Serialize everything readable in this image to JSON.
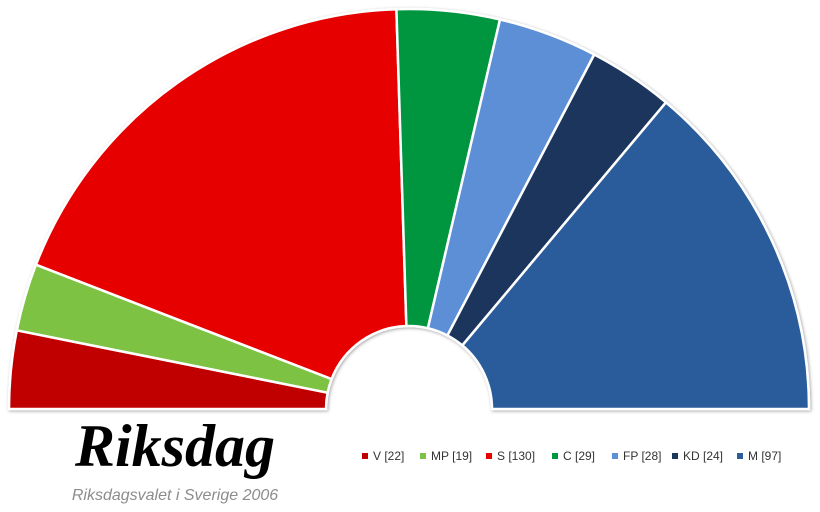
{
  "chart_data": {
    "type": "semicircle-donut",
    "title": "Riksdag",
    "subtitle": "Riksdagsvalet i Sverige 2006",
    "categories": [
      "V [22]",
      "MP [19]",
      "S [130]",
      "C [29]",
      "FP [28]",
      "KD [24]",
      "M [97]"
    ],
    "values": [
      22,
      19,
      130,
      29,
      28,
      24,
      97
    ],
    "colors": [
      "#c00000",
      "#7dc242",
      "#e60000",
      "#009640",
      "#5b8fd6",
      "#1b365d",
      "#2b5c9c"
    ],
    "legend": "bottom-right"
  }
}
